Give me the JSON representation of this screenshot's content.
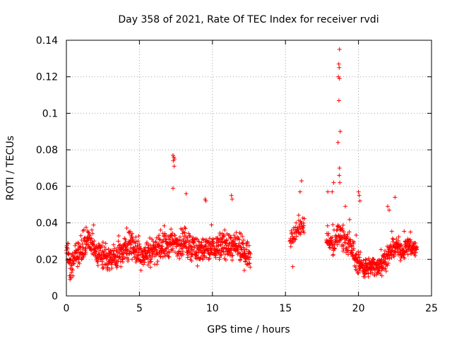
{
  "chart_data": {
    "type": "scatter",
    "title": "Day 358 of 2021, Rate Of TEC Index for receiver rvdi",
    "xlabel": "GPS time / hours",
    "ylabel": "ROTI / TECUs",
    "xlim": [
      0,
      25
    ],
    "ylim": [
      0,
      0.14
    ],
    "xticks": [
      0,
      5,
      10,
      15,
      20,
      25
    ],
    "xtick_labels": [
      "0",
      "5",
      "10",
      "15",
      "20",
      "25"
    ],
    "yticks": [
      0,
      0.02,
      0.04,
      0.06,
      0.08,
      0.1,
      0.12,
      0.14
    ],
    "ytick_labels": [
      "0",
      "0.02",
      "0.04",
      "0.06",
      "0.08",
      "0.1",
      "0.12",
      "0.14"
    ],
    "grid": true,
    "marker": "+",
    "color": "#ff0000",
    "series_name": "ROTI",
    "segments": [
      {
        "start": 0.0,
        "end": 12.6,
        "step": 0.013,
        "base": [
          [
            0,
            0.025
          ],
          [
            0.3,
            0.018
          ],
          [
            1,
            0.025
          ],
          [
            1.5,
            0.032
          ],
          [
            2,
            0.024
          ],
          [
            3,
            0.02
          ],
          [
            4,
            0.025
          ],
          [
            4.5,
            0.03
          ],
          [
            5,
            0.022
          ],
          [
            6,
            0.025
          ],
          [
            7,
            0.028
          ],
          [
            8,
            0.03
          ],
          [
            9,
            0.025
          ],
          [
            10,
            0.026
          ],
          [
            11,
            0.028
          ],
          [
            12,
            0.025
          ],
          [
            12.6,
            0.022
          ]
        ],
        "spread": 0.007
      },
      {
        "start": 15.3,
        "end": 16.3,
        "step": 0.02,
        "base": [
          [
            15.3,
            0.032
          ],
          [
            15.8,
            0.037
          ],
          [
            16.3,
            0.04
          ]
        ],
        "spread": 0.005
      },
      {
        "start": 17.8,
        "end": 19.7,
        "step": 0.015,
        "base": [
          [
            17.8,
            0.03
          ],
          [
            18.3,
            0.028
          ],
          [
            18.7,
            0.035
          ],
          [
            19.2,
            0.03
          ],
          [
            19.7,
            0.024
          ]
        ],
        "spread": 0.006
      },
      {
        "start": 19.7,
        "end": 24.0,
        "step": 0.013,
        "base": [
          [
            19.7,
            0.02
          ],
          [
            20.5,
            0.015
          ],
          [
            21.5,
            0.017
          ],
          [
            22,
            0.022
          ],
          [
            22.5,
            0.027
          ],
          [
            23,
            0.025
          ],
          [
            23.5,
            0.028
          ],
          [
            24,
            0.025
          ]
        ],
        "spread": 0.005
      }
    ],
    "notable_points": [
      [
        0.25,
        0.009
      ],
      [
        0.3,
        0.01
      ],
      [
        0.22,
        0.011
      ],
      [
        7.3,
        0.077
      ],
      [
        7.35,
        0.076
      ],
      [
        7.32,
        0.074
      ],
      [
        7.4,
        0.075
      ],
      [
        7.38,
        0.071
      ],
      [
        7.3,
        0.059
      ],
      [
        8.2,
        0.056
      ],
      [
        9.5,
        0.053
      ],
      [
        9.55,
        0.052
      ],
      [
        11.3,
        0.055
      ],
      [
        11.35,
        0.053
      ],
      [
        15.5,
        0.016
      ],
      [
        16.1,
        0.063
      ],
      [
        16.0,
        0.057
      ],
      [
        18.7,
        0.135
      ],
      [
        18.65,
        0.127
      ],
      [
        18.68,
        0.125
      ],
      [
        18.62,
        0.12
      ],
      [
        18.7,
        0.119
      ],
      [
        18.66,
        0.107
      ],
      [
        18.75,
        0.09
      ],
      [
        18.6,
        0.084
      ],
      [
        18.7,
        0.07
      ],
      [
        18.68,
        0.066
      ],
      [
        18.72,
        0.062
      ],
      [
        18.3,
        0.062
      ],
      [
        18.2,
        0.057
      ],
      [
        17.9,
        0.057
      ],
      [
        19.1,
        0.049
      ],
      [
        20.0,
        0.057
      ],
      [
        20.05,
        0.055
      ],
      [
        20.1,
        0.052
      ],
      [
        22.0,
        0.049
      ],
      [
        22.1,
        0.047
      ],
      [
        22.5,
        0.054
      ],
      [
        21.6,
        0.011
      ],
      [
        20.4,
        0.012
      ]
    ]
  }
}
